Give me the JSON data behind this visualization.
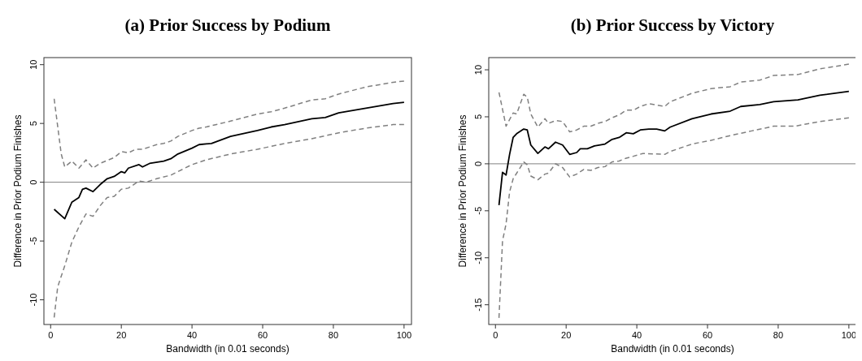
{
  "chart_data": [
    {
      "type": "line",
      "title": "(a) Prior Success by Podium",
      "xlabel": "Bandwidth (in 0.01 seconds)",
      "ylabel": "Difference in Prior Podium Finishes",
      "xlim": [
        -1.9,
        102.1
      ],
      "ylim": [
        -12.1,
        10.6
      ],
      "xticks": [
        0,
        20,
        40,
        60,
        80,
        100
      ],
      "yticks": [
        -10,
        -5,
        0,
        5,
        10
      ],
      "grid": false,
      "ref_lines": [
        {
          "axis": "y",
          "value": 0,
          "color": "#808080",
          "line_style": "solid"
        }
      ],
      "series": [
        {
          "color": "#000000",
          "line_style": "solid",
          "x": [
            1,
            4,
            6,
            8,
            9,
            10,
            12,
            14,
            16,
            18,
            20,
            21,
            22,
            25,
            26,
            28,
            32,
            34,
            36,
            40,
            42,
            45.5,
            50.9,
            58.5,
            62.4,
            66.2,
            73.9,
            77.7,
            81.5,
            89.2,
            96.9,
            100
          ],
          "values": [
            -2.3,
            -3.1,
            -1.7,
            -1.3,
            -0.6,
            -0.5,
            -0.8,
            -0.2,
            0.3,
            0.5,
            0.9,
            0.8,
            1.2,
            1.5,
            1.3,
            1.6,
            1.8,
            2.0,
            2.4,
            2.9,
            3.2,
            3.3,
            3.9,
            4.4,
            4.7,
            4.9,
            5.4,
            5.5,
            5.9,
            6.3,
            6.7,
            6.8
          ]
        },
        {
          "color": "#808080",
          "line_style": "dashed",
          "x": [
            1,
            3,
            4,
            6,
            8,
            10,
            12,
            14,
            18,
            20,
            22,
            24,
            26,
            30,
            32,
            34,
            36,
            40,
            42,
            44,
            50.9,
            58.5,
            62.4,
            66.2,
            73.9,
            77.7,
            81.5,
            89.2,
            96.9,
            100
          ],
          "values": [
            7.1,
            2.4,
            1.3,
            1.8,
            1.2,
            1.9,
            1.2,
            1.6,
            2.1,
            2.6,
            2.5,
            2.8,
            2.8,
            3.2,
            3.3,
            3.5,
            3.9,
            4.4,
            4.6,
            4.7,
            5.2,
            5.8,
            6.0,
            6.3,
            7.0,
            7.1,
            7.5,
            8.1,
            8.5,
            8.6
          ]
        },
        {
          "color": "#808080",
          "line_style": "dashed",
          "x": [
            1,
            2,
            3,
            4,
            6,
            8,
            10,
            12,
            14,
            16,
            18,
            20,
            22,
            25,
            27,
            30,
            34,
            36,
            40,
            44,
            50.9,
            58.5,
            66.2,
            73.9,
            81.5,
            89.2,
            96.9,
            100
          ],
          "values": [
            -11.5,
            -8.9,
            -8.0,
            -7.1,
            -5.1,
            -3.8,
            -2.7,
            -2.9,
            -2.0,
            -1.3,
            -1.2,
            -0.6,
            -0.5,
            0.1,
            0.0,
            0.3,
            0.6,
            0.9,
            1.5,
            1.9,
            2.4,
            2.8,
            3.3,
            3.7,
            4.2,
            4.6,
            4.9,
            4.9
          ]
        }
      ]
    },
    {
      "type": "line",
      "title": "(b) Prior Success by Victory",
      "xlabel": "Bandwidth (in 0.01 seconds)",
      "ylabel": "Difference in Prior Podium Finishes",
      "xlim": [
        -1.9,
        102.1
      ],
      "ylim": [
        -17.1,
        11.3
      ],
      "xticks": [
        0,
        20,
        40,
        60,
        80,
        100
      ],
      "yticks": [
        -15,
        -10,
        -5,
        0,
        5,
        10
      ],
      "grid": false,
      "ref_lines": [
        {
          "axis": "y",
          "value": 0,
          "color": "#808080",
          "line_style": "solid"
        }
      ],
      "series": [
        {
          "color": "#000000",
          "line_style": "solid",
          "x": [
            1,
            2,
            3,
            4,
            5,
            6,
            8,
            9,
            10,
            12,
            14,
            15,
            17,
            19,
            21,
            23,
            24,
            26,
            28,
            31,
            33,
            35,
            37,
            39,
            41,
            43.4,
            45.6,
            47.9,
            49.4,
            55.6,
            61,
            66.4,
            69.4,
            74.8,
            78.7,
            85.6,
            91.8,
            100
          ],
          "values": [
            -4.4,
            -0.9,
            -1.2,
            1.0,
            2.8,
            3.2,
            3.7,
            3.6,
            2.0,
            1.1,
            1.8,
            1.6,
            2.3,
            2.0,
            1.0,
            1.2,
            1.6,
            1.6,
            1.9,
            2.1,
            2.6,
            2.8,
            3.3,
            3.2,
            3.6,
            3.7,
            3.7,
            3.5,
            3.9,
            4.8,
            5.3,
            5.6,
            6.1,
            6.3,
            6.6,
            6.8,
            7.3,
            7.7
          ]
        },
        {
          "color": "#808080",
          "line_style": "dashed",
          "x": [
            1,
            3,
            5,
            6,
            8,
            9,
            10,
            12,
            14,
            15,
            17,
            19,
            21,
            23,
            25,
            27,
            29,
            31,
            33,
            35,
            37,
            39,
            41,
            43.4,
            47.9,
            49.4,
            55.6,
            61,
            66.4,
            69.4,
            74.8,
            78.7,
            85.6,
            91.8,
            100
          ],
          "values": [
            7.6,
            4.0,
            5.4,
            5.3,
            7.4,
            7.1,
            5.3,
            3.9,
            4.8,
            4.3,
            4.6,
            4.5,
            3.4,
            3.6,
            4.0,
            4.0,
            4.3,
            4.5,
            4.9,
            5.2,
            5.7,
            5.7,
            6.1,
            6.4,
            6.1,
            6.6,
            7.5,
            8.0,
            8.2,
            8.7,
            8.9,
            9.4,
            9.5,
            10.1,
            10.6
          ]
        },
        {
          "color": "#808080",
          "line_style": "dashed",
          "x": [
            1,
            2,
            3,
            4,
            5,
            6,
            7,
            8,
            9,
            10,
            12,
            14,
            15,
            17,
            19,
            21,
            23,
            25,
            27,
            29,
            31,
            33,
            35,
            37,
            39,
            41.7,
            47.9,
            49.4,
            55.6,
            61,
            66.4,
            72.5,
            78.7,
            84.7,
            91.8,
            100
          ],
          "values": [
            -16.4,
            -8.2,
            -6.4,
            -3.0,
            -1.6,
            -1.0,
            -0.4,
            0.2,
            -0.1,
            -1.3,
            -1.7,
            -1.1,
            -1.0,
            0.0,
            -0.4,
            -1.4,
            -1.1,
            -0.6,
            -0.7,
            -0.4,
            -0.3,
            0.2,
            0.3,
            0.6,
            0.8,
            1.1,
            1.0,
            1.3,
            2.1,
            2.5,
            3.0,
            3.5,
            4.0,
            4.0,
            4.5,
            4.9
          ]
        }
      ]
    }
  ]
}
